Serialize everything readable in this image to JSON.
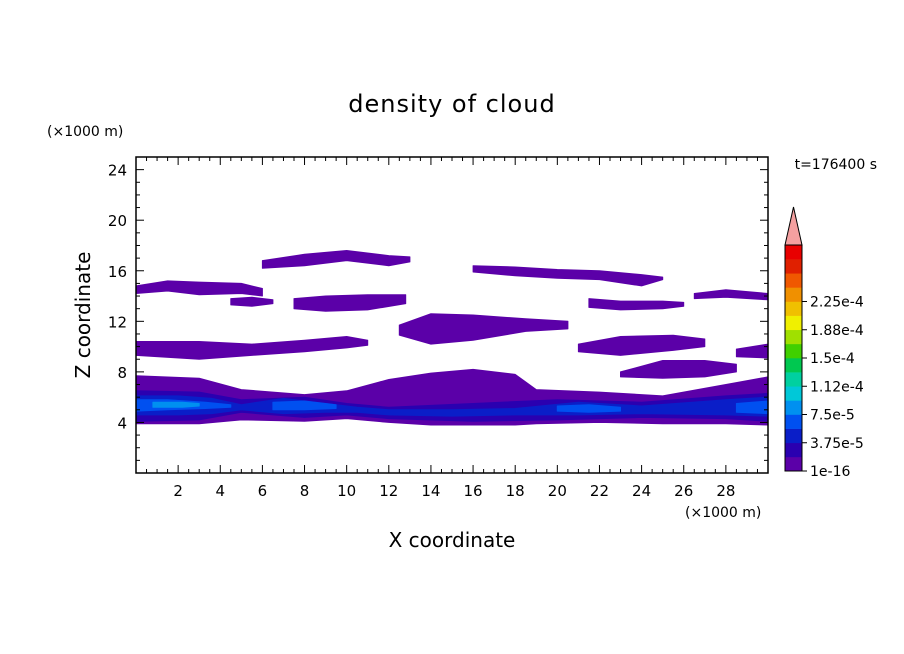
{
  "chart_data": {
    "type": "heatmap",
    "title": "density of cloud",
    "xlabel": "X coordinate",
    "ylabel": "Z coordinate",
    "x_unit": "(×1000 m)",
    "y_unit": "(×1000 m)",
    "time_label": "t=176400 s",
    "xlim": [
      0,
      30
    ],
    "ylim": [
      0,
      25
    ],
    "x_ticks": [
      2,
      4,
      6,
      8,
      10,
      12,
      14,
      16,
      18,
      20,
      22,
      24,
      26,
      28
    ],
    "y_ticks": [
      4,
      8,
      12,
      16,
      20,
      24
    ],
    "grid": false,
    "colorbar": {
      "labels": [
        "1e-16",
        "3.75e-5",
        "7.5e-5",
        "1.12e-4",
        "1.5e-4",
        "1.88e-4",
        "2.25e-4"
      ],
      "colors": [
        "#5b00a8",
        "#2a00b0",
        "#0a1ec8",
        "#0050f0",
        "#0090f0",
        "#00c8d8",
        "#00d0a0",
        "#00c850",
        "#40d000",
        "#a0e000",
        "#f0f000",
        "#f0c000",
        "#f09000",
        "#f05800",
        "#e02000",
        "#e80000"
      ],
      "extend_color": "#f4a0a0"
    },
    "cloud_layers": [
      {
        "level": 0,
        "band": [
          [
            0,
            14.2,
            14.8
          ],
          [
            1.5,
            14.4,
            15.2
          ],
          [
            3,
            14.1,
            15.1
          ],
          [
            5,
            14.2,
            15.0
          ],
          [
            6,
            14.0,
            14.6
          ]
        ]
      },
      {
        "level": 0,
        "band": [
          [
            6,
            16.2,
            16.8
          ],
          [
            8,
            16.4,
            17.3
          ],
          [
            10,
            16.8,
            17.6
          ],
          [
            12,
            16.4,
            17.2
          ],
          [
            13,
            16.7,
            17.1
          ]
        ]
      },
      {
        "level": 0,
        "band": [
          [
            16,
            15.9,
            16.4
          ],
          [
            18,
            15.6,
            16.3
          ],
          [
            20,
            15.4,
            16.1
          ],
          [
            22,
            15.3,
            16.0
          ],
          [
            24,
            14.8,
            15.7
          ],
          [
            25,
            15.3,
            15.5
          ]
        ]
      },
      {
        "level": 0,
        "band": [
          [
            7.5,
            13.0,
            13.8
          ],
          [
            9,
            12.8,
            14.0
          ],
          [
            11,
            12.9,
            14.1
          ],
          [
            12.8,
            13.4,
            14.1
          ]
        ]
      },
      {
        "level": 0,
        "band": [
          [
            4.5,
            13.3,
            13.8
          ],
          [
            5.5,
            13.2,
            13.9
          ],
          [
            6.5,
            13.4,
            13.7
          ]
        ]
      },
      {
        "level": 0,
        "band": [
          [
            21.5,
            13.1,
            13.8
          ],
          [
            23,
            12.9,
            13.6
          ],
          [
            25,
            13.0,
            13.6
          ],
          [
            26,
            13.2,
            13.5
          ]
        ]
      },
      {
        "level": 0,
        "band": [
          [
            26.5,
            13.8,
            14.2
          ],
          [
            28,
            13.9,
            14.5
          ],
          [
            30,
            13.7,
            14.2
          ]
        ]
      },
      {
        "level": 0,
        "band": [
          [
            0,
            9.3,
            10.4
          ],
          [
            3,
            9.0,
            10.4
          ],
          [
            5.5,
            9.3,
            10.2
          ],
          [
            8,
            9.6,
            10.5
          ],
          [
            10,
            9.9,
            10.8
          ],
          [
            11,
            10.1,
            10.5
          ]
        ]
      },
      {
        "level": 0,
        "band": [
          [
            12.5,
            10.9,
            11.7
          ],
          [
            14,
            10.2,
            12.6
          ],
          [
            16,
            10.5,
            12.5
          ],
          [
            18.5,
            11.2,
            12.2
          ],
          [
            20.5,
            11.4,
            12.0
          ]
        ]
      },
      {
        "level": 0,
        "band": [
          [
            21,
            9.6,
            10.2
          ],
          [
            23,
            9.3,
            10.8
          ],
          [
            25.5,
            9.7,
            10.9
          ],
          [
            27,
            10.0,
            10.6
          ]
        ]
      },
      {
        "level": 0,
        "band": [
          [
            23,
            7.6,
            8.0
          ],
          [
            25,
            7.5,
            8.9
          ],
          [
            27,
            7.6,
            8.9
          ],
          [
            28.5,
            8.0,
            8.6
          ]
        ]
      },
      {
        "level": 0,
        "band": [
          [
            28.5,
            9.2,
            9.8
          ],
          [
            30,
            9.1,
            10.2
          ]
        ]
      },
      {
        "level": 0,
        "band": [
          [
            0,
            3.9,
            7.7
          ],
          [
            3,
            3.9,
            7.5
          ],
          [
            5,
            4.2,
            6.6
          ],
          [
            8,
            4.1,
            6.2
          ],
          [
            10,
            4.3,
            6.5
          ],
          [
            12,
            4.0,
            7.4
          ],
          [
            14,
            3.8,
            7.9
          ],
          [
            16,
            3.8,
            8.2
          ],
          [
            18,
            3.8,
            7.8
          ],
          [
            19,
            3.9,
            6.6
          ],
          [
            22,
            4.0,
            6.4
          ],
          [
            25,
            3.9,
            6.1
          ],
          [
            28,
            3.9,
            7.0
          ],
          [
            30,
            3.8,
            7.6
          ]
        ]
      },
      {
        "level": 1,
        "band": [
          [
            0,
            4.1,
            6.5
          ],
          [
            3,
            4.2,
            6.4
          ],
          [
            5,
            4.8,
            5.8
          ],
          [
            8,
            4.4,
            6.0
          ],
          [
            10,
            4.6,
            5.5
          ],
          [
            12,
            4.3,
            5.2
          ],
          [
            16,
            4.1,
            5.5
          ],
          [
            20,
            4.2,
            5.8
          ],
          [
            24,
            4.4,
            5.6
          ],
          [
            28,
            4.3,
            6.1
          ],
          [
            30,
            4.1,
            6.3
          ]
        ]
      },
      {
        "level": 2,
        "band": [
          [
            0,
            4.6,
            6.1
          ],
          [
            2,
            4.6,
            6.1
          ],
          [
            3.6,
            4.7,
            5.9
          ],
          [
            5,
            5.0,
            5.4
          ],
          [
            7,
            4.7,
            5.9
          ],
          [
            9,
            4.8,
            5.5
          ],
          [
            10.5,
            4.8,
            5.2
          ],
          [
            12,
            4.6,
            5.0
          ],
          [
            15,
            4.5,
            5.0
          ],
          [
            18,
            4.6,
            5.1
          ],
          [
            21,
            4.6,
            5.6
          ],
          [
            24,
            4.7,
            5.3
          ],
          [
            28,
            4.6,
            5.8
          ],
          [
            30,
            4.5,
            6.0
          ]
        ]
      },
      {
        "level": 3,
        "band": [
          [
            0,
            4.9,
            5.8
          ],
          [
            1.5,
            5.0,
            5.8
          ],
          [
            3.3,
            5.1,
            5.6
          ],
          [
            4.5,
            5.2,
            5.4
          ]
        ]
      },
      {
        "level": 3,
        "band": [
          [
            6.5,
            5.0,
            5.6
          ],
          [
            8,
            5.0,
            5.7
          ],
          [
            9.5,
            5.1,
            5.4
          ]
        ]
      },
      {
        "level": 3,
        "band": [
          [
            20,
            4.9,
            5.3
          ],
          [
            21.5,
            4.8,
            5.4
          ],
          [
            23,
            4.9,
            5.2
          ]
        ]
      },
      {
        "level": 3,
        "band": [
          [
            28.5,
            4.8,
            5.5
          ],
          [
            30,
            4.7,
            5.7
          ]
        ]
      },
      {
        "level": 4,
        "band": [
          [
            0.8,
            5.2,
            5.6
          ],
          [
            2.2,
            5.2,
            5.6
          ],
          [
            3,
            5.3,
            5.5
          ]
        ]
      }
    ]
  }
}
